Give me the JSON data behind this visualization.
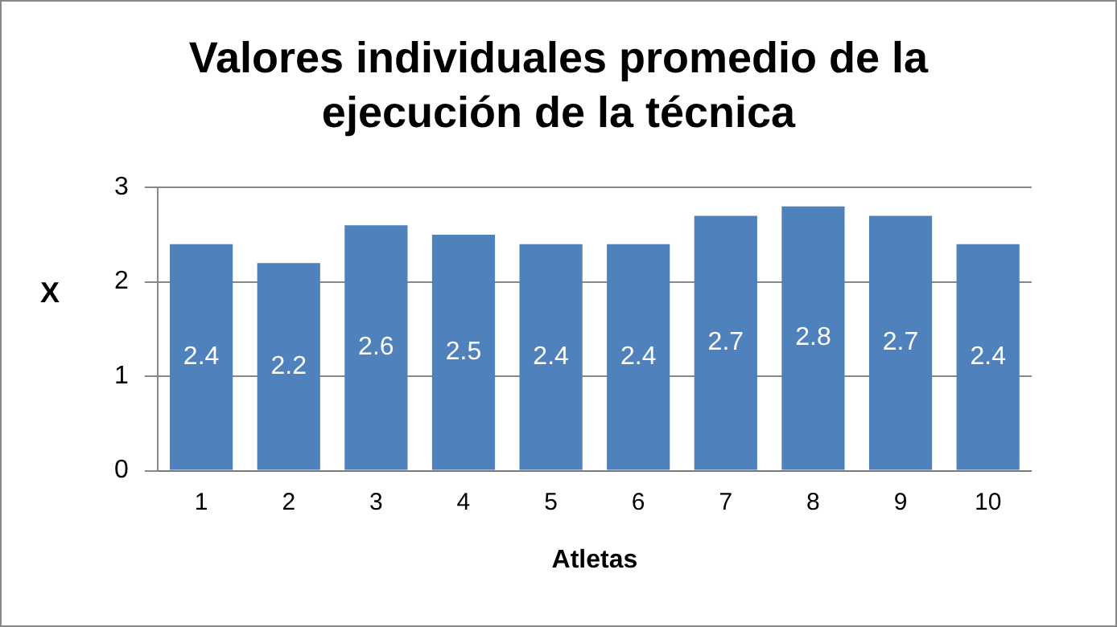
{
  "chart_data": {
    "type": "bar",
    "title": "Valores individuales promedio de la ejecución de la técnica",
    "xlabel": "Atletas",
    "ylabel": "X",
    "categories": [
      "1",
      "2",
      "3",
      "4",
      "5",
      "6",
      "7",
      "8",
      "9",
      "10"
    ],
    "values": [
      2.4,
      2.2,
      2.6,
      2.5,
      2.4,
      2.4,
      2.7,
      2.8,
      2.7,
      2.4
    ],
    "color": "#4f81bd",
    "ylim": [
      0,
      3
    ],
    "yticks": [
      0,
      1,
      2,
      3
    ],
    "grid": "y",
    "data_labels": true,
    "legend": false
  }
}
